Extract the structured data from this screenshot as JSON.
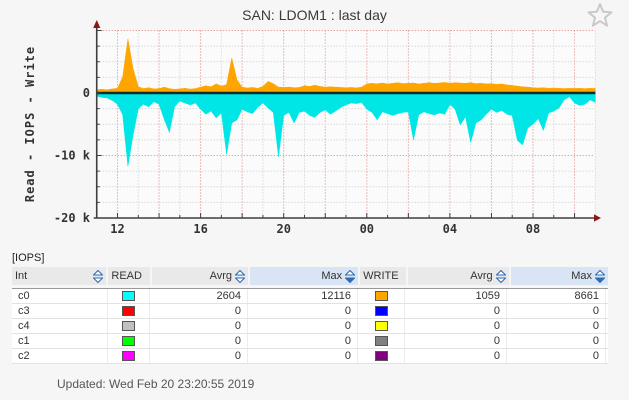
{
  "page": {
    "title": "SAN: LDOM1 : last day",
    "updated": "Updated: Wed Feb 20 23:20:55 2019"
  },
  "chart_data": {
    "type": "area",
    "title": "SAN: LDOM1 : last day",
    "ylabel": "Read - IOPS - Write",
    "unit": "IOPS",
    "ylim": [
      -20000,
      10000
    ],
    "grid": true,
    "note": "writes plotted above zero, reads plotted below zero; dark flat line at 0 = interfaces c1-c4 with zero IOPS",
    "y_ticks": [
      {
        "value": 0,
        "label": "0"
      },
      {
        "value": -10000,
        "label": "-10 k"
      },
      {
        "value": -20000,
        "label": "-20 k"
      }
    ],
    "x_ticks": [
      {
        "hour": 12,
        "label": "12"
      },
      {
        "hour": 16,
        "label": "16"
      },
      {
        "hour": 20,
        "label": "20"
      },
      {
        "hour": 24,
        "label": "00"
      },
      {
        "hour": 28,
        "label": "04"
      },
      {
        "hour": 32,
        "label": "08"
      }
    ],
    "x_hours_start": 11,
    "x_hours_step": 0.25,
    "x_hours_end": 35,
    "zero_line_color": "#0a2d2d",
    "series": [
      {
        "name": "write (c0)",
        "color": "#ffa500",
        "values": [
          550,
          600,
          520,
          650,
          750,
          2600,
          8650,
          3900,
          1000,
          700,
          850,
          650,
          700,
          950,
          700,
          600,
          650,
          750,
          620,
          700,
          950,
          1150,
          1000,
          1450,
          1100,
          1350,
          5600,
          2100,
          950,
          800,
          900,
          750,
          1050,
          1850,
          1500,
          950,
          900,
          950,
          850,
          900,
          1150,
          1050,
          1250,
          1050,
          950,
          1000,
          950,
          900,
          850,
          900,
          820,
          950,
          1450,
          1550,
          1480,
          1600,
          1450,
          1550,
          1650,
          1500,
          1550,
          1600,
          1450,
          1550,
          1650,
          1550,
          1600,
          1700,
          1550,
          1650,
          1600,
          1550,
          1650,
          1500,
          1550,
          1450,
          1500,
          1400,
          1450,
          1300,
          1200,
          1100,
          1000,
          950,
          850,
          800,
          850,
          750,
          800,
          750,
          700,
          750,
          720,
          750,
          700,
          750,
          720
        ]
      },
      {
        "name": "read (c0)",
        "color": "#00e6e6",
        "values": [
          -500,
          -700,
          -800,
          -1200,
          -1800,
          -3500,
          -11700,
          -6700,
          -2500,
          -1800,
          -2200,
          -1400,
          -1800,
          -4200,
          -6300,
          -2200,
          -1300,
          -1600,
          -1900,
          -1600,
          -2600,
          -3400,
          -2900,
          -4000,
          -3200,
          -9800,
          -4800,
          -4300,
          -2600,
          -3000,
          -3300,
          -2300,
          -1600,
          -2400,
          -3100,
          -10200,
          -3600,
          -3100,
          -4800,
          -3100,
          -2900,
          -3600,
          -3900,
          -3100,
          -2700,
          -3400,
          -2900,
          -2300,
          -1900,
          -1600,
          -1700,
          -1500,
          -2600,
          -3100,
          -4300,
          -3000,
          -3300,
          -3600,
          -3300,
          -3100,
          -3000,
          -7500,
          -3500,
          -3000,
          -3300,
          -3500,
          -3200,
          -3400,
          -1800,
          -2600,
          -5100,
          -3800,
          -7900,
          -4800,
          -4300,
          -3400,
          -2600,
          -3100,
          -2800,
          -3400,
          -3600,
          -7600,
          -8300,
          -5600,
          -5000,
          -4100,
          -6000,
          -3200,
          -2900,
          -2400,
          -1100,
          -600,
          -1600,
          -2000,
          -1800,
          -1100,
          -1500
        ]
      }
    ]
  },
  "table": {
    "section_label": "[IOPS]",
    "headers": {
      "int": "Int",
      "read": "READ",
      "avrg_read": "Avrg",
      "max_read": "Max",
      "write": "WRITE",
      "avrg_write": "Avrg",
      "max_write": "Max"
    },
    "rows": [
      {
        "int": "c0",
        "read_color": "#00ffff",
        "read_avrg": "2604",
        "read_max": "12116",
        "write_color": "#ffa500",
        "write_avrg": "1059",
        "write_max": "8661"
      },
      {
        "int": "c3",
        "read_color": "#ff0000",
        "read_avrg": "0",
        "read_max": "0",
        "write_color": "#0000ff",
        "write_avrg": "0",
        "write_max": "0"
      },
      {
        "int": "c4",
        "read_color": "#c0c0c0",
        "read_avrg": "0",
        "read_max": "0",
        "write_color": "#ffff00",
        "write_avrg": "0",
        "write_max": "0"
      },
      {
        "int": "c1",
        "read_color": "#00ff00",
        "read_avrg": "0",
        "read_max": "0",
        "write_color": "#808080",
        "write_avrg": "0",
        "write_max": "0"
      },
      {
        "int": "c2",
        "read_color": "#ff00ff",
        "read_avrg": "0",
        "read_max": "0",
        "write_color": "#800080",
        "write_avrg": "0",
        "write_max": "0"
      }
    ]
  }
}
